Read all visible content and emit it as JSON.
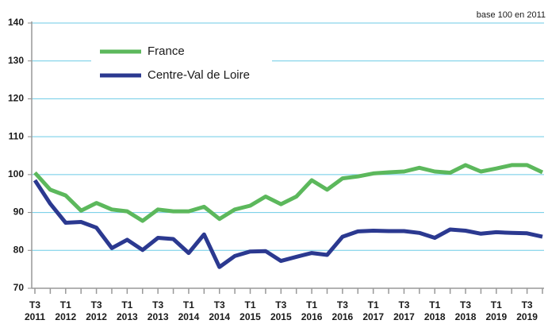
{
  "chart_data": {
    "type": "line",
    "annotation": "base 100 en 2011",
    "categories": [
      "T3 2011",
      null,
      "T1 2012",
      null,
      "T3 2012",
      null,
      "T1 2013",
      null,
      "T3 2013",
      null,
      "T1 2014",
      null,
      "T3 2014",
      null,
      "T1 2015",
      null,
      "T3 2015",
      null,
      "T1 2016",
      null,
      "T3 2016",
      null,
      "T1 2017",
      null,
      "T3 2017",
      null,
      "T1 2018",
      null,
      "T3 2018",
      null,
      "T1 2019",
      null,
      "T3 2019",
      null
    ],
    "series": [
      {
        "name": "France",
        "color": "#5cb85c",
        "values": [
          100.5,
          96,
          94.5,
          90.5,
          92.5,
          90.8,
          90.3,
          87.8,
          90.8,
          90.3,
          90.3,
          91.5,
          88.3,
          90.8,
          91.8,
          94.2,
          92.2,
          94.2,
          98.5,
          96,
          99,
          99.5,
          100.3,
          100.6,
          100.8,
          101.8,
          100.8,
          100.5,
          102.5,
          100.8,
          101.6,
          102.5,
          102.5,
          100.6
        ]
      },
      {
        "name": "Centre-Val de Loire",
        "color": "#2b3990",
        "values": [
          98.5,
          92.3,
          87.3,
          87.5,
          86,
          80.6,
          82.8,
          80.1,
          83.3,
          83,
          79.3,
          84.2,
          75.6,
          78.5,
          79.7,
          79.8,
          77.2,
          78.3,
          79.3,
          78.8,
          83.6,
          85,
          85.2,
          85.1,
          85.1,
          84.6,
          83.3,
          85.5,
          85.2,
          84.4,
          84.8,
          84.6,
          84.5,
          83.6
        ]
      }
    ],
    "ylim": [
      70,
      140
    ],
    "yticks": [
      70,
      80,
      90,
      100,
      110,
      120,
      130,
      140
    ],
    "grid": true,
    "legend": "upper left"
  }
}
